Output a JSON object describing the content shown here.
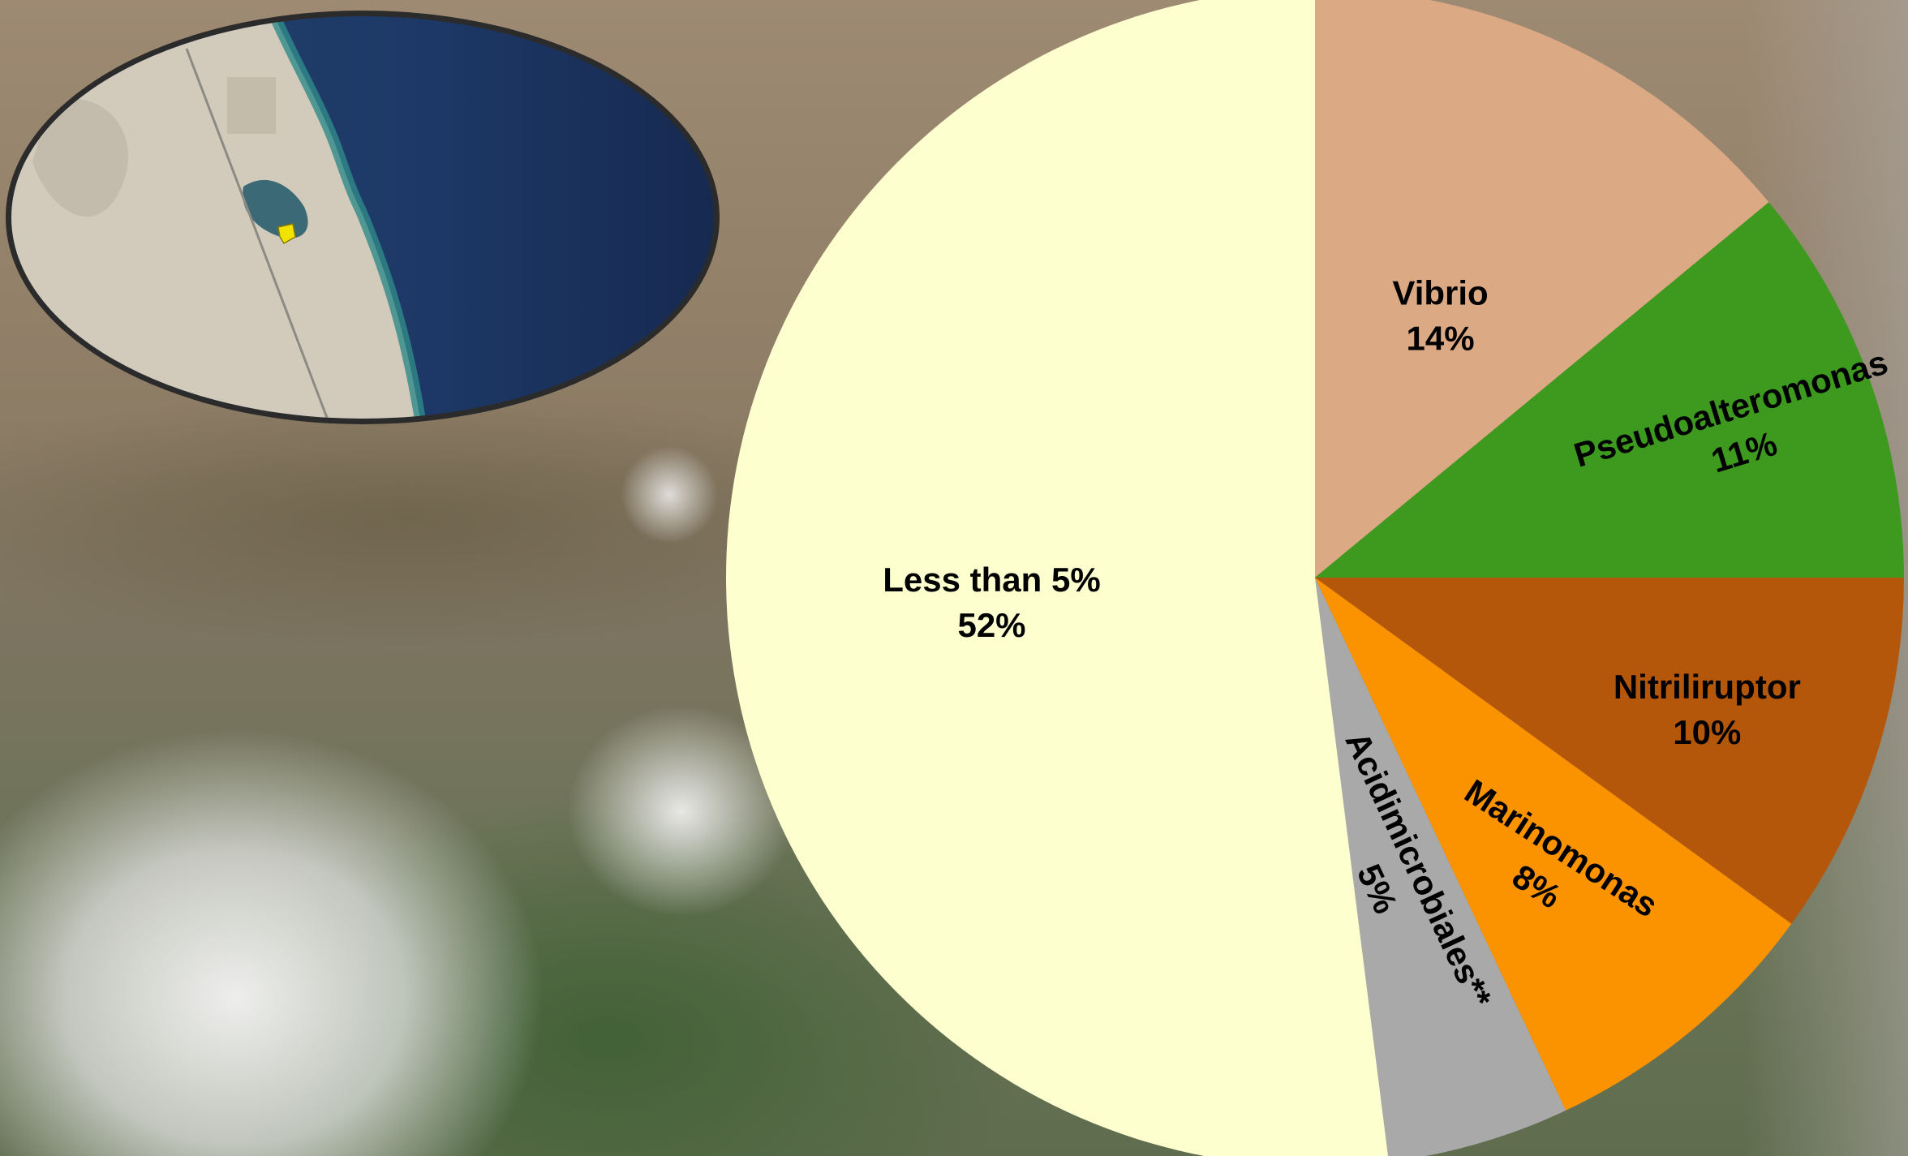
{
  "chart_data": {
    "type": "pie",
    "slices": [
      {
        "label": "Vibrio",
        "value": 14,
        "value_label": "14%",
        "color": "#dba983"
      },
      {
        "label": "Pseudoalteromonas",
        "value": 11,
        "value_label": "11%",
        "color": "#3d9a1e"
      },
      {
        "label": "Nitriliruptor",
        "value": 10,
        "value_label": "10%",
        "color": "#b5570b"
      },
      {
        "label": "Marinomonas",
        "value": 8,
        "value_label": "8%",
        "color": "#fb9200"
      },
      {
        "label": "Acidimicrobiales**",
        "value": 5,
        "value_label": "5%",
        "color": "#a9a9a9"
      },
      {
        "label": "Less than 5%",
        "value": 52,
        "value_label": "52%",
        "color": "#feffcf"
      }
    ]
  },
  "inset_map": {
    "description_icon": "location-pin-icon",
    "colors": {
      "sea": "#1f3b6b",
      "land": "#cfc7b6",
      "frame": "#3a3a3a",
      "pin": "#f2e200"
    }
  }
}
